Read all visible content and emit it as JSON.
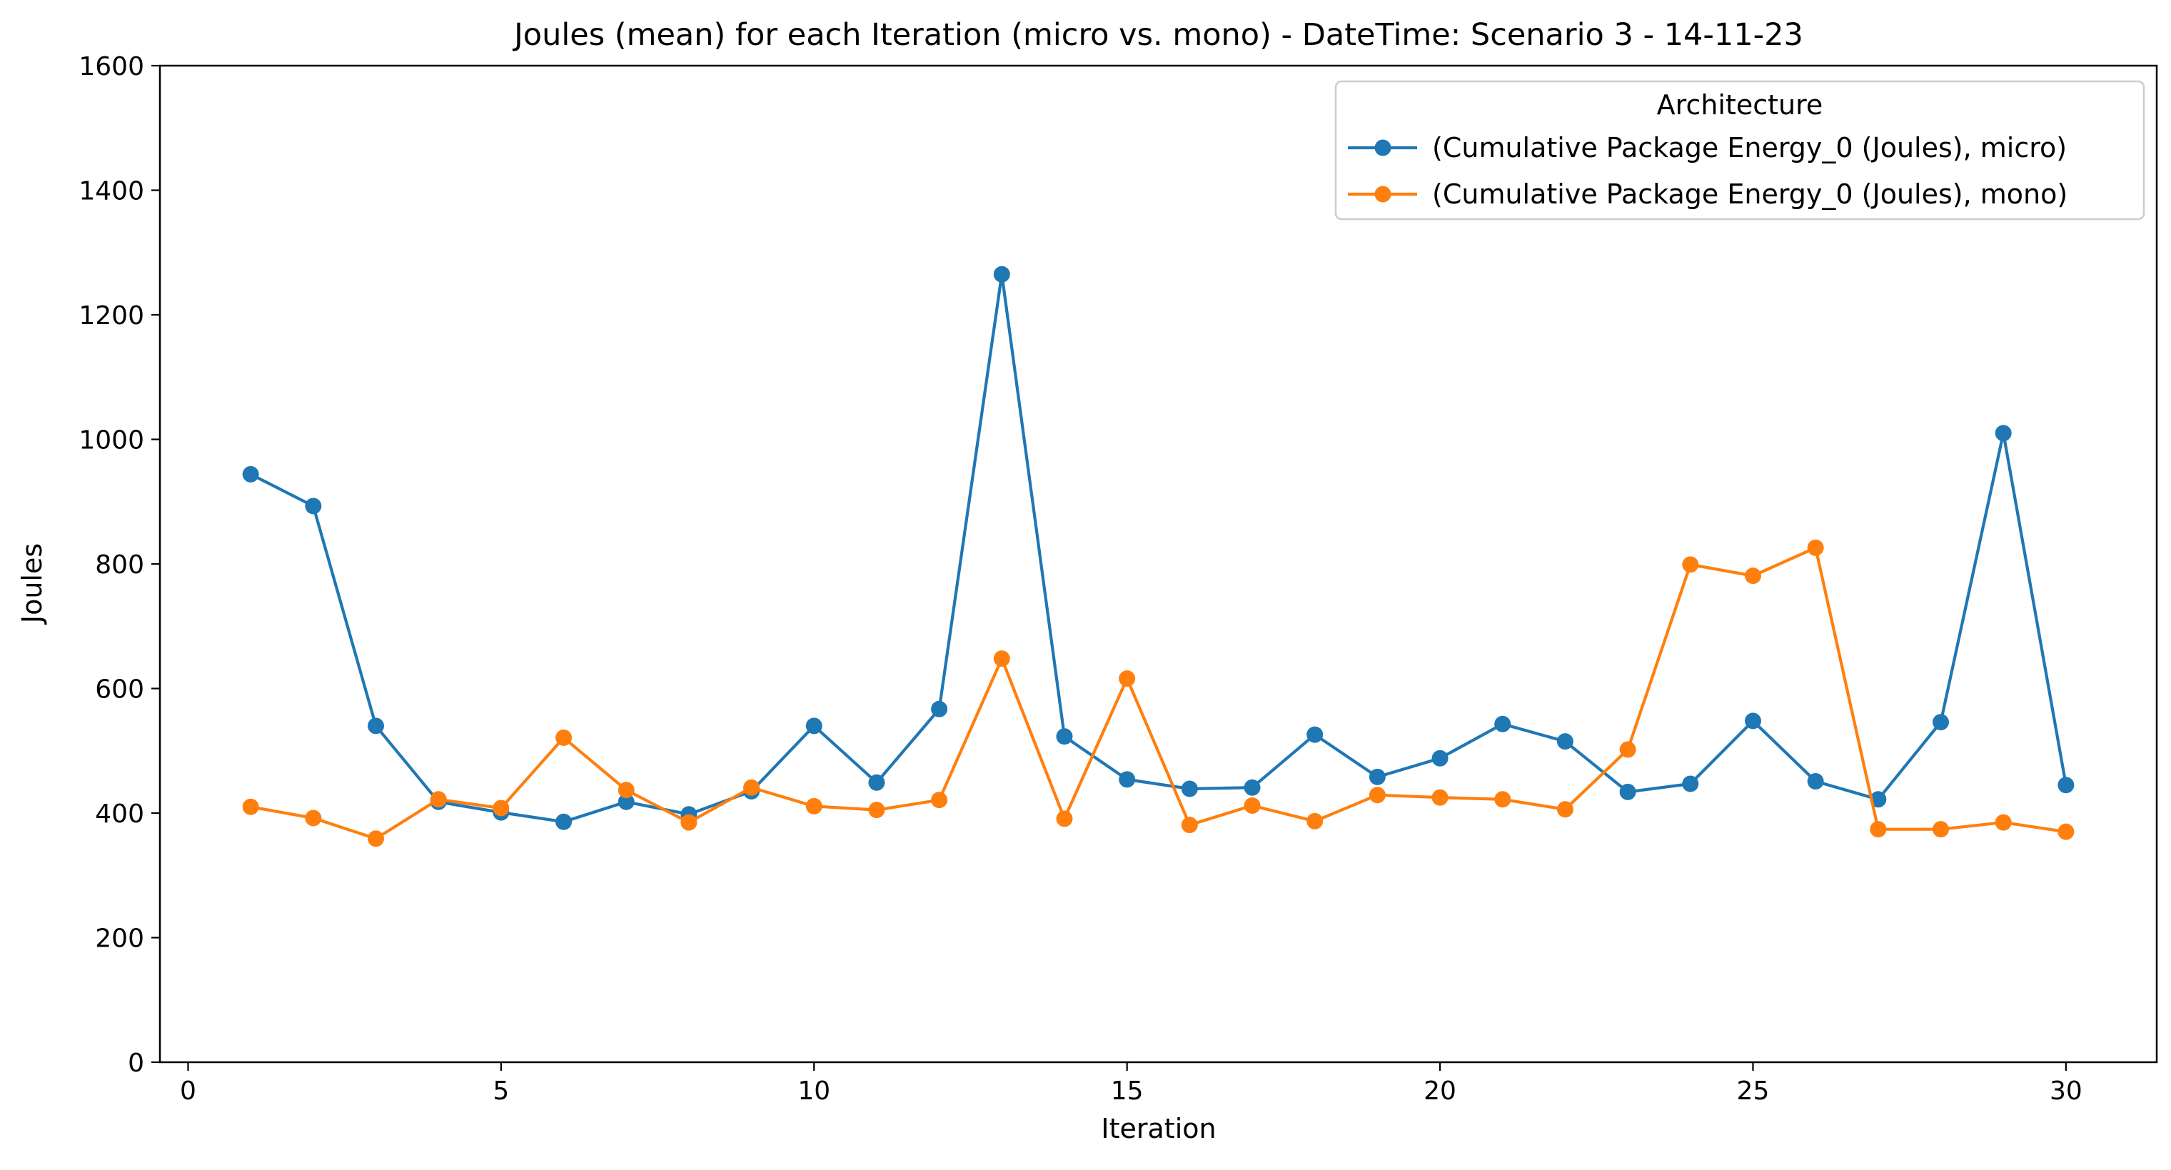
{
  "chart_data": {
    "type": "line",
    "title": "Joules (mean) for each Iteration (micro vs. mono) - DateTime: Scenario 3 - 14-11-23",
    "xlabel": "Iteration",
    "ylabel": "Joules",
    "xlim": [
      -0.45,
      31.45
    ],
    "ylim": [
      0,
      1600
    ],
    "xticks": [
      0,
      5,
      10,
      15,
      20,
      25,
      30
    ],
    "yticks": [
      0,
      200,
      400,
      600,
      800,
      1000,
      1200,
      1400,
      1600
    ],
    "grid": false,
    "legend": {
      "title": "Architecture",
      "placement": "top-right"
    },
    "x": [
      1,
      2,
      3,
      4,
      5,
      6,
      7,
      8,
      9,
      10,
      11,
      12,
      13,
      14,
      15,
      16,
      17,
      18,
      19,
      20,
      21,
      22,
      23,
      24,
      25,
      26,
      27,
      28,
      29,
      30
    ],
    "series": [
      {
        "name": "(Cumulative Package Energy_0 (Joules), micro)",
        "color": "#1f77b4",
        "values": [
          944,
          893,
          540,
          418,
          401,
          386,
          418,
          398,
          435,
          540,
          449,
          567,
          1265,
          523,
          454,
          439,
          441,
          526,
          458,
          488,
          543,
          515,
          434,
          447,
          548,
          451,
          422,
          546,
          1010,
          445
        ]
      },
      {
        "name": "(Cumulative Package Energy_0 (Joules), mono)",
        "color": "#ff7f0e",
        "values": [
          410,
          392,
          359,
          422,
          408,
          521,
          437,
          385,
          441,
          411,
          405,
          421,
          648,
          391,
          616,
          381,
          412,
          387,
          429,
          425,
          422,
          406,
          502,
          799,
          781,
          826,
          374,
          374,
          385,
          370
        ]
      }
    ]
  }
}
